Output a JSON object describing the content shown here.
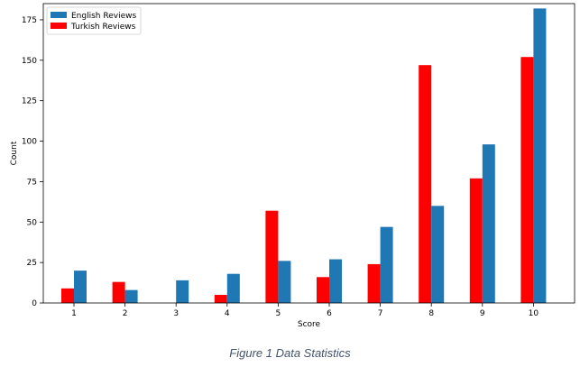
{
  "caption": "Figure 1 Data Statistics",
  "chart_data": {
    "type": "bar",
    "xlabel": "Score",
    "ylabel": "Count",
    "categories": [
      "1",
      "2",
      "3",
      "4",
      "5",
      "6",
      "7",
      "8",
      "9",
      "10"
    ],
    "ylim": [
      0,
      185
    ],
    "yticks": [
      0,
      25,
      50,
      75,
      100,
      125,
      150,
      175
    ],
    "grid": false,
    "legend_position": "top-left",
    "series": [
      {
        "name": "English Reviews",
        "color": "#1f77b4",
        "values": [
          20,
          8,
          14,
          18,
          26,
          27,
          47,
          60,
          98,
          182
        ]
      },
      {
        "name": "Turkish Reviews",
        "color": "#ff0000",
        "values": [
          9,
          13,
          0,
          5,
          57,
          16,
          24,
          147,
          77,
          152
        ]
      }
    ]
  }
}
